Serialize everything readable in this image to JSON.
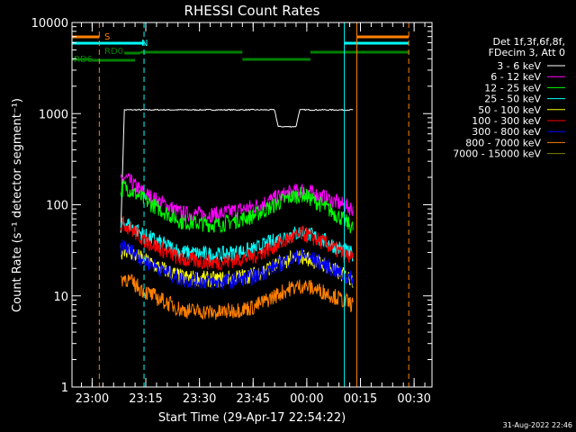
{
  "chart_data": {
    "type": "line",
    "title": "RHESSI Count Rates",
    "xlabel": "Start Time (29-Apr-17 22:54:22)",
    "ylabel": "Count Rate (s⁻¹ detector segment⁻¹)",
    "yscale": "log",
    "ylim": [
      1,
      10000
    ],
    "y_ticks": [
      {
        "value": 1,
        "label": "1"
      },
      {
        "value": 10,
        "label": "10"
      },
      {
        "value": 100,
        "label": "100"
      },
      {
        "value": 1000,
        "label": "1000"
      },
      {
        "value": 10000,
        "label": "10000"
      }
    ],
    "xlim": [
      "22:54:22",
      "00:35:00"
    ],
    "x_ticks": [
      "23:00",
      "23:15",
      "23:30",
      "23:45",
      "00:00",
      "00:15",
      "00:30"
    ],
    "legend_header": [
      "Det 1f,3f,6f,8f,",
      "FDecim 3, Att 0"
    ],
    "series": [
      {
        "name": "3 - 6 keV",
        "color": "#ffffff",
        "x": [
          "23:08",
          "23:09",
          "23:15",
          "23:30",
          "23:45",
          "23:51",
          "23:52",
          "23:57",
          "23:58",
          "00:00",
          "00:13"
        ],
        "y": [
          50,
          1100,
          1100,
          1100,
          1100,
          1100,
          720,
          720,
          1100,
          1100,
          1100
        ]
      },
      {
        "name": "6 - 12 keV",
        "color": "#ff00ff",
        "x": [
          "23:08",
          "23:09",
          "23:15",
          "23:25",
          "23:35",
          "23:45",
          "23:55",
          "23:59",
          "00:05",
          "00:10",
          "00:13"
        ],
        "y": [
          170,
          200,
          130,
          80,
          78,
          95,
          135,
          145,
          120,
          100,
          90
        ]
      },
      {
        "name": "12 - 25 keV",
        "color": "#00ff00",
        "x": [
          "23:08",
          "23:09",
          "23:15",
          "23:25",
          "23:35",
          "23:45",
          "23:55",
          "23:59",
          "00:05",
          "00:10",
          "00:13"
        ],
        "y": [
          140,
          160,
          110,
          65,
          60,
          75,
          120,
          130,
          95,
          70,
          55
        ]
      },
      {
        "name": "25 - 50 keV",
        "color": "#00ffff",
        "x": [
          "23:08",
          "23:09",
          "23:15",
          "23:25",
          "23:35",
          "23:45",
          "23:55",
          "23:59",
          "00:05",
          "00:10",
          "00:13"
        ],
        "y": [
          55,
          65,
          45,
          30,
          28,
          32,
          47,
          50,
          40,
          32,
          28
        ]
      },
      {
        "name": "50 - 100 keV",
        "color": "#ffff00",
        "x": [
          "23:08",
          "23:09",
          "23:15",
          "23:25",
          "23:35",
          "23:45",
          "23:55",
          "23:59",
          "00:05",
          "00:10",
          "00:13"
        ],
        "y": [
          30,
          33,
          24,
          16,
          15,
          17,
          25,
          27,
          22,
          17,
          15
        ]
      },
      {
        "name": "100 - 300 keV",
        "color": "#ff0000",
        "x": [
          "23:08",
          "23:09",
          "23:15",
          "23:25",
          "23:35",
          "23:45",
          "23:55",
          "23:59",
          "00:05",
          "00:10",
          "00:13"
        ],
        "y": [
          60,
          62,
          40,
          25,
          23,
          27,
          42,
          48,
          38,
          29,
          25
        ]
      },
      {
        "name": "300 - 800 keV",
        "color": "#0000ff",
        "x": [
          "23:08",
          "23:09",
          "23:15",
          "23:25",
          "23:35",
          "23:45",
          "23:55",
          "23:59",
          "00:05",
          "00:10",
          "00:13"
        ],
        "y": [
          33,
          35,
          24,
          15,
          14,
          16,
          25,
          28,
          22,
          17,
          15
        ]
      },
      {
        "name": "800 - 7000 keV",
        "color": "#ff8000",
        "x": [
          "23:08",
          "23:09",
          "23:15",
          "23:25",
          "23:35",
          "23:45",
          "23:55",
          "23:59",
          "00:05",
          "00:10",
          "00:13"
        ],
        "y": [
          15,
          16,
          11,
          7,
          6.5,
          7.5,
          12,
          13,
          11,
          9,
          8
        ]
      },
      {
        "name": "7000 - 15000 keV",
        "color": "#808000",
        "x": [],
        "y": []
      }
    ],
    "vertical_lines": [
      {
        "x": "22:54:22",
        "color": "#00ffff",
        "style": "solid"
      },
      {
        "x": "23:02:00",
        "color": "#ff8000",
        "style": "dashed"
      },
      {
        "x": "23:14:30",
        "color": "#00ffff",
        "style": "dashed"
      },
      {
        "x": "00:10:30",
        "color": "#00ffff",
        "style": "solid"
      },
      {
        "x": "00:14:00",
        "color": "#ff8000",
        "style": "solid"
      },
      {
        "x": "00:28:30",
        "color": "#ff8000",
        "style": "dashed"
      }
    ],
    "flag_bars": [
      {
        "label": "S",
        "color": "#ff8000",
        "segments": [
          [
            "22:54:22",
            "23:02:00"
          ],
          [
            "00:14:00",
            "00:28:30"
          ]
        ]
      },
      {
        "label": "N",
        "color": "#00ffff",
        "segments": [
          [
            "22:54:22",
            "23:14:30"
          ],
          [
            "00:10:30",
            "00:28:30"
          ]
        ]
      },
      {
        "label": "RD0",
        "color": "#008000",
        "segments": [
          [
            "23:09:00",
            "23:13:30"
          ],
          [
            "23:13:30",
            "23:42:00"
          ],
          [
            "23:42:00",
            "00:01:00"
          ],
          [
            "00:01:00",
            "00:28:30"
          ]
        ]
      },
      {
        "label": "RD6",
        "color": "#008000",
        "segments": [
          [
            "22:54:22",
            "23:00:00"
          ],
          [
            "23:00:00",
            "23:12:00"
          ]
        ]
      }
    ],
    "timestamp": "31-Aug-2022 22:46",
    "grid": false,
    "legend_placement": "top-right"
  }
}
